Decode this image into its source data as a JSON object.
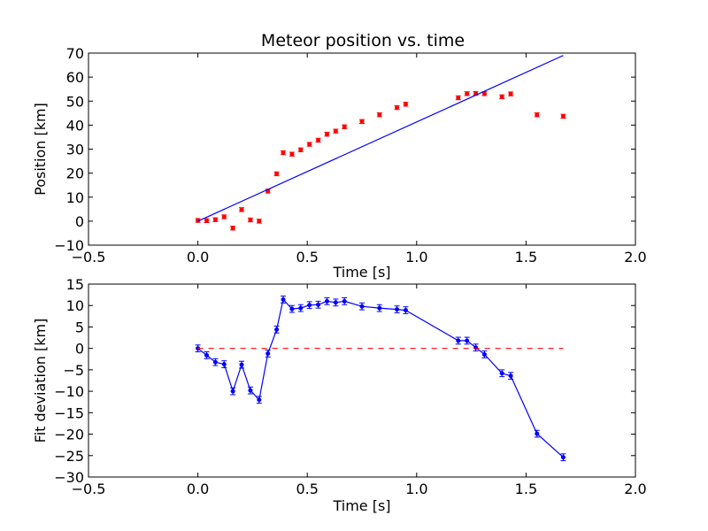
{
  "chart_data": [
    {
      "type": "scatter",
      "title": "Meteor position vs. time",
      "xlabel": "Time [s]",
      "ylabel": "Position [km]",
      "xlim": [
        -0.5,
        2.0
      ],
      "ylim": [
        -10,
        70
      ],
      "xticks": [
        -0.5,
        0.0,
        0.5,
        1.0,
        1.5,
        2.0
      ],
      "xtick_labels": [
        "−0.5",
        "0.0",
        "0.5",
        "1.0",
        "1.5",
        "2.0"
      ],
      "yticks": [
        -10,
        0,
        10,
        20,
        30,
        40,
        50,
        60,
        70
      ],
      "ytick_labels": [
        "−10",
        "0",
        "10",
        "20",
        "30",
        "40",
        "50",
        "60",
        "70"
      ],
      "grid": false,
      "series": [
        {
          "kind": "errorbar-points",
          "color": "#ff0000",
          "x": [
            0.0,
            0.04,
            0.08,
            0.12,
            0.16,
            0.2,
            0.24,
            0.28,
            0.32,
            0.36,
            0.39,
            0.43,
            0.47,
            0.51,
            0.55,
            0.59,
            0.63,
            0.67,
            0.75,
            0.83,
            0.91,
            0.95,
            1.19,
            1.23,
            1.27,
            1.31,
            1.39,
            1.43,
            1.55,
            1.67
          ],
          "y": [
            0.3,
            0.2,
            0.6,
            1.8,
            -2.9,
            4.8,
            0.5,
            0.0,
            12.5,
            19.7,
            28.5,
            27.9,
            29.7,
            32.0,
            33.7,
            36.2,
            37.5,
            39.3,
            41.5,
            44.3,
            47.3,
            48.7,
            51.4,
            53.1,
            53.2,
            53.1,
            51.8,
            53.0,
            44.3,
            43.7
          ],
          "yerr": 0.8
        },
        {
          "kind": "line",
          "color": "#0000ff",
          "x": [
            0.0,
            1.67
          ],
          "y": [
            0.0,
            69.0
          ]
        }
      ]
    },
    {
      "type": "line",
      "title": "",
      "xlabel": "Time [s]",
      "ylabel": "Fit deviation [km]",
      "xlim": [
        -0.5,
        2.0
      ],
      "ylim": [
        -30,
        15
      ],
      "xticks": [
        -0.5,
        0.0,
        0.5,
        1.0,
        1.5,
        2.0
      ],
      "xtick_labels": [
        "−0.5",
        "0.0",
        "0.5",
        "1.0",
        "1.5",
        "2.0"
      ],
      "yticks": [
        -30,
        -25,
        -20,
        -15,
        -10,
        -5,
        0,
        5,
        10,
        15
      ],
      "ytick_labels": [
        "−30",
        "−25",
        "−20",
        "−15",
        "−10",
        "−5",
        "0",
        "5",
        "10",
        "15"
      ],
      "grid": false,
      "series": [
        {
          "kind": "errorbar-line",
          "color": "#0000ff",
          "x": [
            0.0,
            0.04,
            0.08,
            0.12,
            0.16,
            0.2,
            0.24,
            0.28,
            0.32,
            0.36,
            0.39,
            0.43,
            0.47,
            0.51,
            0.55,
            0.59,
            0.63,
            0.67,
            0.75,
            0.83,
            0.91,
            0.95,
            1.19,
            1.23,
            1.27,
            1.31,
            1.39,
            1.43,
            1.55,
            1.67
          ],
          "y": [
            0.0,
            -1.6,
            -3.2,
            -3.7,
            -10.0,
            -3.8,
            -9.8,
            -12.0,
            -1.2,
            4.4,
            11.4,
            9.2,
            9.4,
            10.1,
            10.2,
            11.0,
            10.7,
            11.0,
            9.8,
            9.4,
            9.1,
            8.9,
            1.8,
            1.8,
            0.2,
            -1.4,
            -5.8,
            -6.4,
            -19.9,
            -25.4
          ],
          "yerr": 0.8
        },
        {
          "kind": "dashed-line",
          "color": "#ff0000",
          "x": [
            0.0,
            1.67
          ],
          "y": [
            0.0,
            0.0
          ]
        }
      ]
    }
  ]
}
